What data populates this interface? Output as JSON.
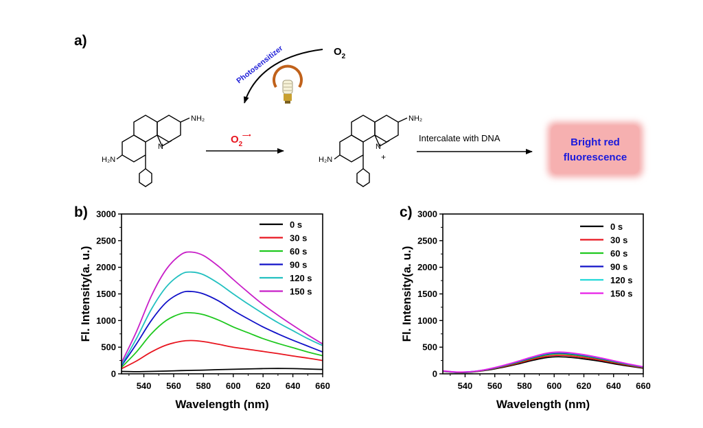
{
  "scheme": {
    "panel_label": "a)",
    "oxygen": "O",
    "oxygen_sub": "2",
    "photosensitizer": "Photosensitizer",
    "superoxide": "O",
    "superoxide_sub": "2",
    "superoxide_sup": "—•",
    "intercalate": "Intercalate with DNA",
    "result_line1": "Bright red",
    "result_line2": "fluorescence",
    "nh2_a": "NH₂",
    "h2n_a": "H₂N",
    "n_a": "N",
    "nh2_b": "NH₂",
    "h2n_b": "H₂N",
    "n_b": "N",
    "plus": "+",
    "colors": {
      "superoxide": "#e8141e",
      "photosensitizer": "#1f1fd8",
      "result_text": "#1a1adc",
      "result_box": "#f4a6a6"
    }
  },
  "chart_data": [
    {
      "type": "line",
      "panel_label": "b)",
      "xlabel": "Wavelength (nm)",
      "ylabel": "Fl. Intensity(a. u.)",
      "xlim": [
        525,
        660
      ],
      "ylim": [
        0,
        3000
      ],
      "xticks": [
        540,
        560,
        580,
        600,
        620,
        640,
        660
      ],
      "yticks": [
        0,
        500,
        1000,
        1500,
        2000,
        2500,
        3000
      ],
      "legend_position": "top-right",
      "x": [
        525,
        535,
        545,
        555,
        565,
        572,
        580,
        590,
        600,
        610,
        620,
        630,
        640,
        650,
        660
      ],
      "series": [
        {
          "name": "0 s",
          "color": "#000000",
          "values": [
            45,
            40,
            45,
            52,
            60,
            65,
            70,
            78,
            85,
            92,
            98,
            100,
            98,
            90,
            82
          ]
        },
        {
          "name": "30 s",
          "color": "#e8141e",
          "values": [
            95,
            240,
            410,
            540,
            610,
            625,
            605,
            555,
            500,
            460,
            420,
            380,
            335,
            295,
            250
          ]
        },
        {
          "name": "60 s",
          "color": "#1ec81e",
          "values": [
            120,
            410,
            750,
            1000,
            1130,
            1145,
            1110,
            1010,
            880,
            770,
            660,
            570,
            490,
            410,
            340
          ]
        },
        {
          "name": "90 s",
          "color": "#1010c8",
          "values": [
            150,
            560,
            1000,
            1340,
            1520,
            1545,
            1500,
            1370,
            1190,
            1030,
            880,
            750,
            630,
            520,
            410
          ]
        },
        {
          "name": "120 s",
          "color": "#22c0c0",
          "values": [
            170,
            660,
            1210,
            1630,
            1870,
            1910,
            1860,
            1700,
            1500,
            1310,
            1130,
            960,
            810,
            660,
            530
          ]
        },
        {
          "name": "150 s",
          "color": "#c81ec8",
          "values": [
            210,
            790,
            1460,
            1960,
            2240,
            2285,
            2220,
            2020,
            1770,
            1530,
            1300,
            1100,
            910,
            730,
            560
          ]
        }
      ]
    },
    {
      "type": "line",
      "panel_label": "c)",
      "xlabel": "Wavelength (nm)",
      "ylabel": "Fl. Intensity(a. u.)",
      "xlim": [
        525,
        660
      ],
      "ylim": [
        0,
        3000
      ],
      "xticks": [
        540,
        560,
        580,
        600,
        620,
        640,
        660
      ],
      "yticks": [
        0,
        500,
        1000,
        1500,
        2000,
        2500,
        3000
      ],
      "legend_position": "top-right",
      "x": [
        525,
        535,
        545,
        555,
        565,
        575,
        585,
        595,
        603,
        610,
        620,
        630,
        640,
        650,
        660
      ],
      "series": [
        {
          "name": "0 s",
          "color": "#000000",
          "values": [
            45,
            25,
            35,
            70,
            120,
            180,
            250,
            305,
            320,
            310,
            280,
            240,
            190,
            145,
            105
          ]
        },
        {
          "name": "30 s",
          "color": "#e8141e",
          "values": [
            48,
            28,
            38,
            76,
            130,
            195,
            270,
            330,
            348,
            338,
            305,
            262,
            208,
            158,
            115
          ]
        },
        {
          "name": "60 s",
          "color": "#1ec81e",
          "values": [
            50,
            30,
            40,
            80,
            140,
            210,
            290,
            355,
            375,
            365,
            330,
            283,
            225,
            170,
            122
          ]
        },
        {
          "name": "90 s",
          "color": "#1010c8",
          "values": [
            52,
            31,
            42,
            83,
            146,
            220,
            302,
            370,
            390,
            380,
            344,
            295,
            235,
            178,
            127
          ]
        },
        {
          "name": "120 s",
          "color": "#22d8d8",
          "values": [
            53,
            32,
            43,
            85,
            150,
            226,
            310,
            380,
            400,
            390,
            353,
            302,
            241,
            182,
            130
          ]
        },
        {
          "name": "150 s",
          "color": "#e81ee8",
          "values": [
            55,
            33,
            44,
            87,
            153,
            230,
            316,
            388,
            408,
            398,
            360,
            308,
            246,
            186,
            133
          ]
        }
      ]
    }
  ]
}
